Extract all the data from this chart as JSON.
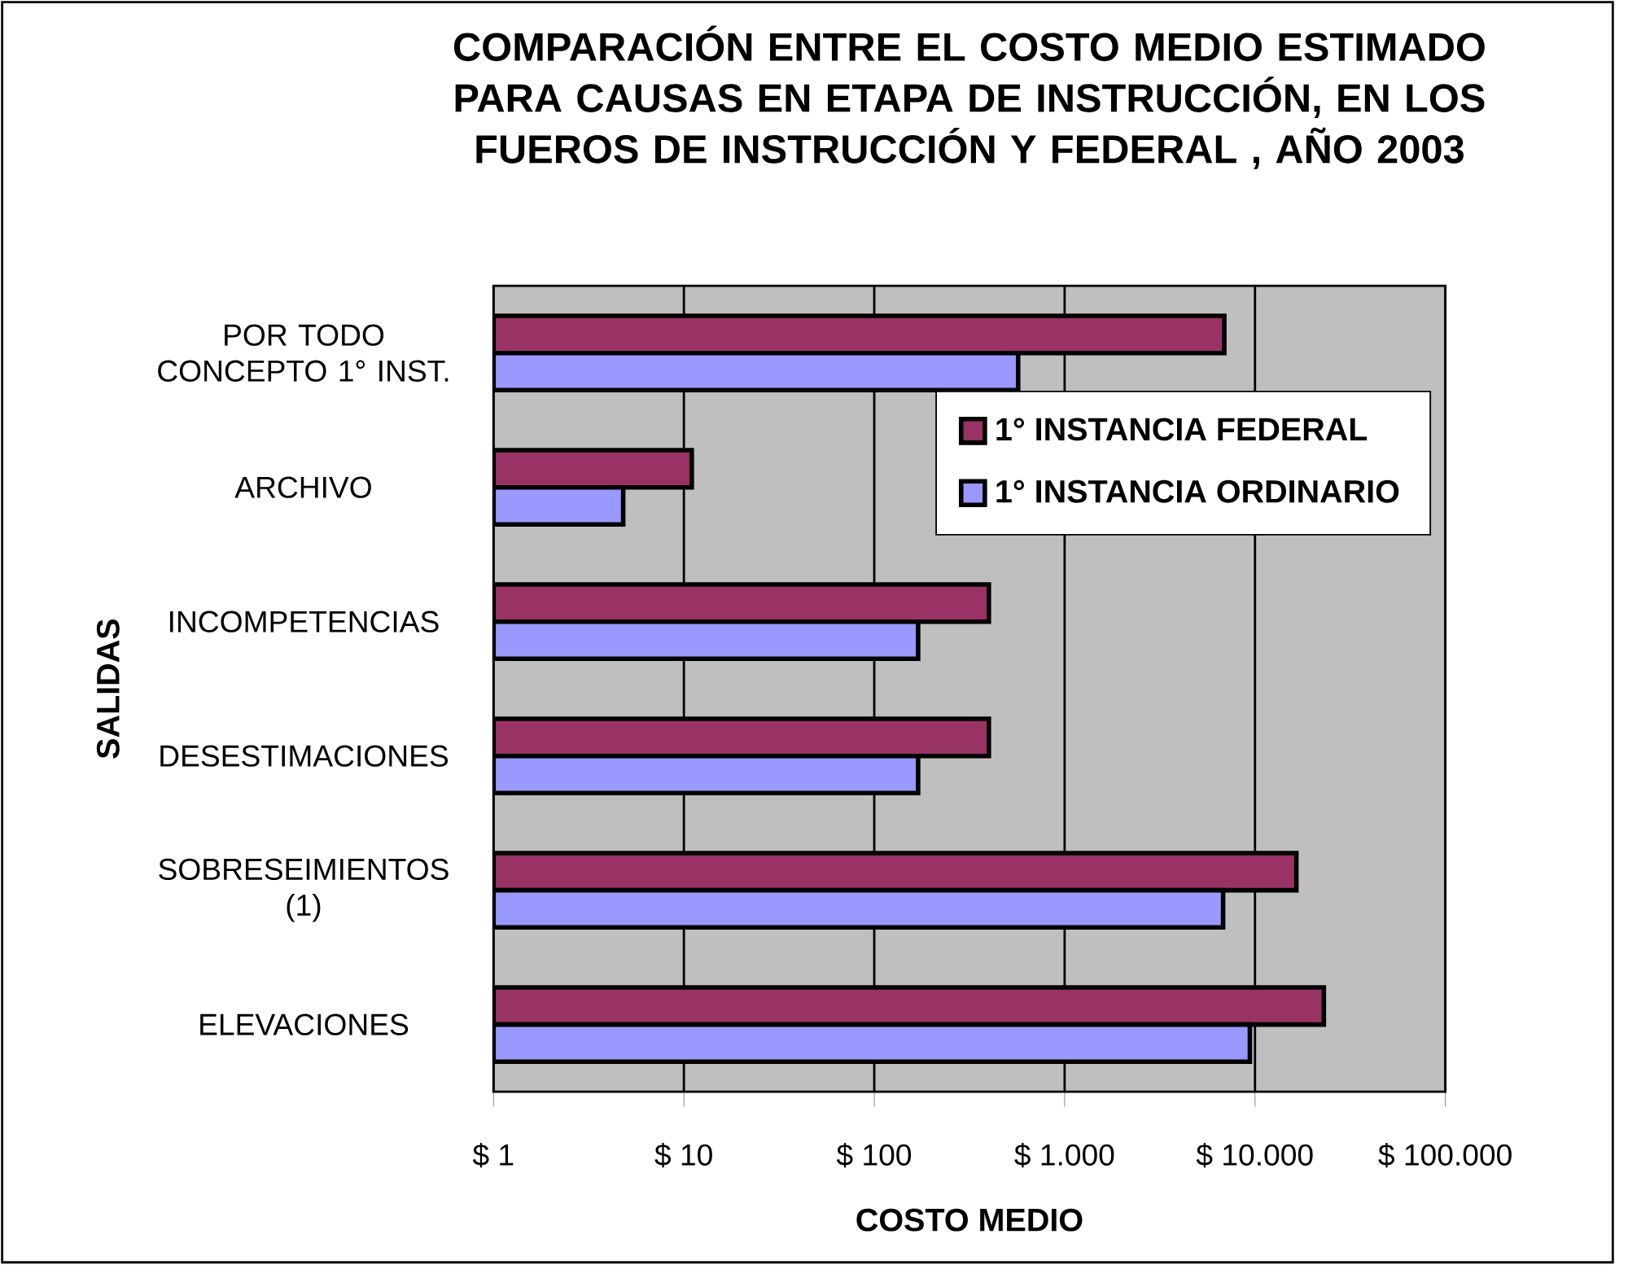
{
  "chart_data": {
    "type": "bar",
    "orientation": "horizontal",
    "log": "x",
    "title": "COMPARACIÓN ENTRE EL COSTO MEDIO  ESTIMADO PARA CAUSAS EN ETAPA DE INSTRUCCIÓN, EN LOS FUEROS DE INSTRUCCIÓN Y FEDERAL , AÑO 2003",
    "xlabel": "COSTO MEDIO",
    "ylabel": "SALIDAS",
    "categories": [
      "POR TODO CONCEPTO 1° INST.",
      "ARCHIVO",
      "INCOMPETENCIAS",
      "DESESTIMACIONES",
      "SOBRESEIMIENTOS (1)",
      "ELEVACIONES"
    ],
    "series": [
      {
        "name": "1° INSTANCIA FEDERAL",
        "color": "#993366",
        "values": [
          6900,
          11,
          400,
          400,
          16500,
          23000
        ]
      },
      {
        "name": "1° INSTANCIA ORDINARIO",
        "color": "#9999ff",
        "values": [
          570,
          4.8,
          170,
          170,
          6800,
          9400
        ]
      }
    ],
    "xlim": [
      1,
      100000
    ],
    "xticks": [
      {
        "value": 1,
        "label": "$ 1"
      },
      {
        "value": 10,
        "label": "$ 10"
      },
      {
        "value": 100,
        "label": "$ 100"
      },
      {
        "value": 1000,
        "label": "$ 1.000"
      },
      {
        "value": 10000,
        "label": "$ 10.000"
      },
      {
        "value": 100000,
        "label": "$ 100.000"
      }
    ],
    "grid": "x",
    "legend": "top right"
  }
}
